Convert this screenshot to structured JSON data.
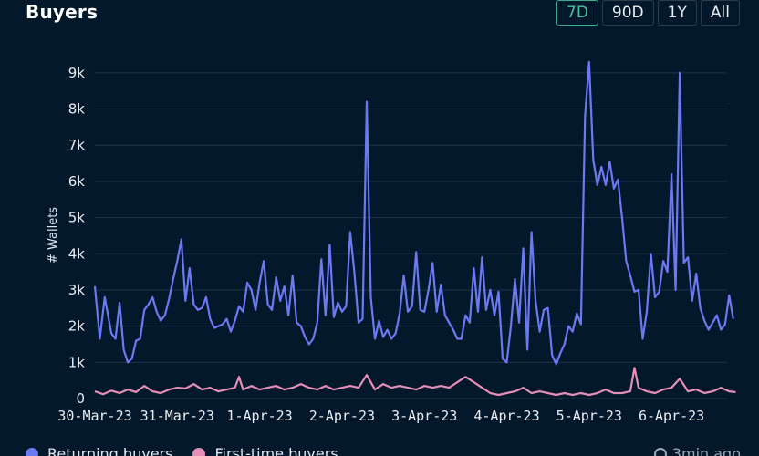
{
  "header": {
    "title": "Buyers",
    "tabs": [
      {
        "label": "7D",
        "active": true
      },
      {
        "label": "90D",
        "active": false
      },
      {
        "label": "1Y",
        "active": false
      },
      {
        "label": "All",
        "active": false
      }
    ]
  },
  "footer": {
    "legend": [
      {
        "label": "Returning buyers",
        "color": "#6b79f2"
      },
      {
        "label": "First-time buyers",
        "color": "#e58fb8"
      }
    ],
    "updated": "3min ago"
  },
  "colors": {
    "background": "#03182a",
    "grid": "#1f3447",
    "returning": "#6b79f2",
    "first_time": "#e58fb8",
    "accent": "#47c3a4"
  },
  "chart_data": {
    "type": "line",
    "ylabel": "# Wallets",
    "ylim": [
      0,
      9500
    ],
    "yticks": [
      {
        "value": 0,
        "label": "0"
      },
      {
        "value": 1000,
        "label": "1k"
      },
      {
        "value": 2000,
        "label": "2k"
      },
      {
        "value": 3000,
        "label": "3k"
      },
      {
        "value": 4000,
        "label": "4k"
      },
      {
        "value": 5000,
        "label": "5k"
      },
      {
        "value": 6000,
        "label": "6k"
      },
      {
        "value": 7000,
        "label": "7k"
      },
      {
        "value": 8000,
        "label": "8k"
      },
      {
        "value": 9000,
        "label": "9k"
      }
    ],
    "xticks": [
      "30-Mar-23",
      "31-Mar-23",
      "1-Apr-23",
      "2-Apr-23",
      "3-Apr-23",
      "4-Apr-23",
      "5-Apr-23",
      "6-Apr-23"
    ],
    "xunit": "days since 30-Mar-23 00:00",
    "xlim": [
      0,
      7.8
    ],
    "series": [
      {
        "name": "Returning buyers",
        "color": "#6b79f2",
        "points": [
          [
            0.0,
            3100
          ],
          [
            0.06,
            1650
          ],
          [
            0.12,
            2800
          ],
          [
            0.2,
            1800
          ],
          [
            0.25,
            1650
          ],
          [
            0.3,
            2650
          ],
          [
            0.35,
            1350
          ],
          [
            0.4,
            1000
          ],
          [
            0.45,
            1100
          ],
          [
            0.5,
            1600
          ],
          [
            0.55,
            1650
          ],
          [
            0.6,
            2450
          ],
          [
            0.65,
            2600
          ],
          [
            0.7,
            2800
          ],
          [
            0.75,
            2400
          ],
          [
            0.8,
            2150
          ],
          [
            0.85,
            2300
          ],
          [
            0.9,
            2750
          ],
          [
            0.95,
            3300
          ],
          [
            1.0,
            3800
          ],
          [
            1.05,
            4400
          ],
          [
            1.1,
            2700
          ],
          [
            1.15,
            3600
          ],
          [
            1.2,
            2600
          ],
          [
            1.25,
            2450
          ],
          [
            1.3,
            2500
          ],
          [
            1.35,
            2800
          ],
          [
            1.4,
            2200
          ],
          [
            1.45,
            1950
          ],
          [
            1.5,
            2000
          ],
          [
            1.55,
            2050
          ],
          [
            1.6,
            2200
          ],
          [
            1.65,
            1850
          ],
          [
            1.7,
            2150
          ],
          [
            1.75,
            2550
          ],
          [
            1.8,
            2400
          ],
          [
            1.85,
            3200
          ],
          [
            1.9,
            3000
          ],
          [
            1.95,
            2450
          ],
          [
            2.0,
            3200
          ],
          [
            2.05,
            3800
          ],
          [
            2.1,
            2600
          ],
          [
            2.15,
            2450
          ],
          [
            2.2,
            3350
          ],
          [
            2.25,
            2700
          ],
          [
            2.3,
            3100
          ],
          [
            2.35,
            2300
          ],
          [
            2.4,
            3400
          ],
          [
            2.45,
            2100
          ],
          [
            2.5,
            2000
          ],
          [
            2.55,
            1700
          ],
          [
            2.6,
            1500
          ],
          [
            2.65,
            1650
          ],
          [
            2.7,
            2100
          ],
          [
            2.75,
            3850
          ],
          [
            2.8,
            2300
          ],
          [
            2.85,
            4250
          ],
          [
            2.9,
            2250
          ],
          [
            2.95,
            2650
          ],
          [
            3.0,
            2400
          ],
          [
            3.05,
            2550
          ],
          [
            3.1,
            4600
          ],
          [
            3.15,
            3500
          ],
          [
            3.2,
            2100
          ],
          [
            3.25,
            2200
          ],
          [
            3.3,
            8200
          ],
          [
            3.35,
            2800
          ],
          [
            3.4,
            1650
          ],
          [
            3.45,
            2150
          ],
          [
            3.5,
            1700
          ],
          [
            3.55,
            1900
          ],
          [
            3.6,
            1650
          ],
          [
            3.65,
            1800
          ],
          [
            3.7,
            2350
          ],
          [
            3.75,
            3400
          ],
          [
            3.8,
            2400
          ],
          [
            3.85,
            2550
          ],
          [
            3.9,
            4050
          ],
          [
            3.95,
            2450
          ],
          [
            4.0,
            2400
          ],
          [
            4.05,
            3000
          ],
          [
            4.1,
            3750
          ],
          [
            4.15,
            2400
          ],
          [
            4.2,
            3150
          ],
          [
            4.25,
            2300
          ],
          [
            4.3,
            2100
          ],
          [
            4.35,
            1900
          ],
          [
            4.4,
            1650
          ],
          [
            4.45,
            1650
          ],
          [
            4.5,
            2300
          ],
          [
            4.55,
            2100
          ],
          [
            4.6,
            3600
          ],
          [
            4.65,
            2400
          ],
          [
            4.7,
            3900
          ],
          [
            4.75,
            2450
          ],
          [
            4.8,
            3000
          ],
          [
            4.85,
            2300
          ],
          [
            4.9,
            2950
          ],
          [
            4.95,
            1100
          ],
          [
            5.0,
            1000
          ],
          [
            5.05,
            2000
          ],
          [
            5.1,
            3300
          ],
          [
            5.15,
            2100
          ],
          [
            5.2,
            4150
          ],
          [
            5.25,
            1350
          ],
          [
            5.3,
            4600
          ],
          [
            5.35,
            2700
          ],
          [
            5.4,
            1850
          ],
          [
            5.45,
            2450
          ],
          [
            5.5,
            2500
          ],
          [
            5.55,
            1200
          ],
          [
            5.6,
            950
          ],
          [
            5.65,
            1250
          ],
          [
            5.7,
            1500
          ],
          [
            5.75,
            2000
          ],
          [
            5.8,
            1850
          ],
          [
            5.85,
            2350
          ],
          [
            5.9,
            2050
          ],
          [
            5.95,
            7800
          ],
          [
            6.0,
            9300
          ],
          [
            6.05,
            6600
          ],
          [
            6.1,
            5900
          ],
          [
            6.15,
            6400
          ],
          [
            6.2,
            5900
          ],
          [
            6.25,
            6550
          ],
          [
            6.3,
            5800
          ],
          [
            6.35,
            6050
          ],
          [
            6.4,
            5000
          ],
          [
            6.45,
            3800
          ],
          [
            6.5,
            3400
          ],
          [
            6.55,
            2950
          ],
          [
            6.6,
            3000
          ],
          [
            6.65,
            1650
          ],
          [
            6.7,
            2400
          ],
          [
            6.75,
            4000
          ],
          [
            6.8,
            2800
          ],
          [
            6.85,
            2950
          ],
          [
            6.9,
            3800
          ],
          [
            6.95,
            3500
          ],
          [
            7.0,
            6200
          ],
          [
            7.05,
            3000
          ],
          [
            7.1,
            9000
          ],
          [
            7.15,
            3750
          ],
          [
            7.2,
            3900
          ],
          [
            7.25,
            2700
          ],
          [
            7.3,
            3450
          ],
          [
            7.35,
            2500
          ],
          [
            7.4,
            2150
          ],
          [
            7.45,
            1900
          ],
          [
            7.5,
            2100
          ],
          [
            7.55,
            2300
          ],
          [
            7.6,
            1900
          ],
          [
            7.65,
            2050
          ],
          [
            7.7,
            2850
          ],
          [
            7.75,
            2200
          ]
        ]
      },
      {
        "name": "First-time buyers",
        "color": "#e58fb8",
        "points": [
          [
            0.0,
            200
          ],
          [
            0.1,
            120
          ],
          [
            0.2,
            220
          ],
          [
            0.3,
            150
          ],
          [
            0.4,
            250
          ],
          [
            0.5,
            180
          ],
          [
            0.6,
            350
          ],
          [
            0.7,
            200
          ],
          [
            0.8,
            150
          ],
          [
            0.9,
            250
          ],
          [
            1.0,
            300
          ],
          [
            1.1,
            280
          ],
          [
            1.2,
            400
          ],
          [
            1.3,
            250
          ],
          [
            1.4,
            300
          ],
          [
            1.5,
            200
          ],
          [
            1.6,
            250
          ],
          [
            1.7,
            300
          ],
          [
            1.75,
            600
          ],
          [
            1.8,
            250
          ],
          [
            1.9,
            350
          ],
          [
            2.0,
            250
          ],
          [
            2.1,
            300
          ],
          [
            2.2,
            350
          ],
          [
            2.3,
            250
          ],
          [
            2.4,
            300
          ],
          [
            2.5,
            400
          ],
          [
            2.6,
            300
          ],
          [
            2.7,
            250
          ],
          [
            2.8,
            350
          ],
          [
            2.9,
            250
          ],
          [
            3.0,
            300
          ],
          [
            3.1,
            350
          ],
          [
            3.2,
            300
          ],
          [
            3.3,
            650
          ],
          [
            3.4,
            250
          ],
          [
            3.5,
            400
          ],
          [
            3.6,
            300
          ],
          [
            3.7,
            350
          ],
          [
            3.8,
            300
          ],
          [
            3.9,
            250
          ],
          [
            4.0,
            350
          ],
          [
            4.1,
            300
          ],
          [
            4.2,
            350
          ],
          [
            4.3,
            300
          ],
          [
            4.4,
            450
          ],
          [
            4.5,
            600
          ],
          [
            4.6,
            450
          ],
          [
            4.7,
            300
          ],
          [
            4.8,
            150
          ],
          [
            4.9,
            100
          ],
          [
            5.0,
            150
          ],
          [
            5.1,
            200
          ],
          [
            5.2,
            300
          ],
          [
            5.3,
            150
          ],
          [
            5.4,
            200
          ],
          [
            5.5,
            150
          ],
          [
            5.6,
            100
          ],
          [
            5.7,
            150
          ],
          [
            5.8,
            100
          ],
          [
            5.9,
            150
          ],
          [
            6.0,
            100
          ],
          [
            6.1,
            150
          ],
          [
            6.2,
            250
          ],
          [
            6.3,
            150
          ],
          [
            6.4,
            150
          ],
          [
            6.5,
            200
          ],
          [
            6.55,
            850
          ],
          [
            6.6,
            300
          ],
          [
            6.7,
            200
          ],
          [
            6.8,
            150
          ],
          [
            6.9,
            250
          ],
          [
            7.0,
            300
          ],
          [
            7.1,
            550
          ],
          [
            7.2,
            200
          ],
          [
            7.3,
            250
          ],
          [
            7.4,
            150
          ],
          [
            7.5,
            200
          ],
          [
            7.6,
            300
          ],
          [
            7.7,
            200
          ],
          [
            7.78,
            180
          ]
        ]
      }
    ]
  }
}
